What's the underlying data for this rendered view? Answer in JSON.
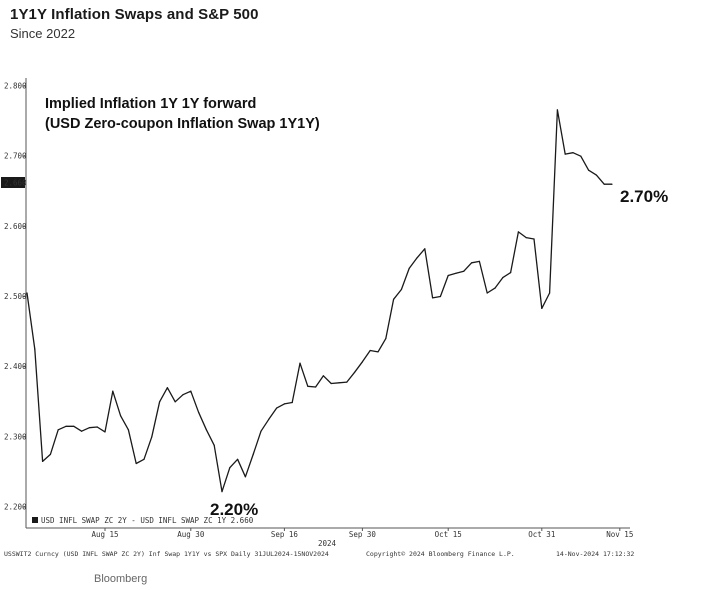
{
  "header": {
    "title": "1Y1Y Inflation Swaps and S&P 500",
    "subtitle": "Since 2022"
  },
  "footer": {
    "left": "USSWIT2 Curncy (USD INFL SWAP ZC 2Y) Inf Swap 1Y1Y vs SPX  Daily 31JUL2024-15NOV2024",
    "center": "Copyright© 2024 Bloomberg Finance L.P.",
    "right": "14-Nov-2024 17:12:32",
    "brand": "Bloomberg"
  },
  "chart_data": {
    "type": "line",
    "annotation_lines": [
      "Implied Inflation 1Y 1Y forward",
      "(USD Zero-coupon Inflation Swap 1Y1Y)"
    ],
    "low_label": "2.20%",
    "last_label": "2.70%",
    "legend": "USD INFL SWAP ZC 2Y - USD INFL SWAP ZC 1Y 2.660",
    "last_value_tag": "2.660",
    "xlabel": "2024",
    "x_ticks": [
      "Aug 15",
      "Aug 30",
      "Sep 16",
      "Sep 30",
      "Oct 15",
      "Oct 31",
      "Nov 15"
    ],
    "y_ticks": [
      "2.200",
      "2.300",
      "2.400",
      "2.500",
      "2.600",
      "2.700",
      "2.800"
    ],
    "ylim": [
      2.18,
      2.82
    ],
    "colors": {
      "line": "#1a1a1a",
      "axis": "#555555",
      "tag_bg": "#1a1a1a",
      "tag_text": "#ffffff"
    },
    "series": [
      {
        "values": [
          2.505,
          2.425,
          2.265,
          2.275,
          2.31,
          2.315,
          2.315,
          2.308,
          2.313,
          2.314,
          2.307,
          2.365,
          2.33,
          2.31,
          2.262,
          2.268,
          2.3,
          2.35,
          2.37,
          2.35,
          2.36,
          2.365,
          2.335,
          2.31,
          2.288,
          2.222,
          2.256,
          2.268,
          2.243,
          2.275,
          2.308,
          2.325,
          2.341,
          2.347,
          2.349,
          2.405,
          2.372,
          2.371,
          2.387,
          2.376,
          2.377,
          2.378,
          2.392,
          2.407,
          2.423,
          2.421,
          2.44,
          2.496,
          2.51,
          2.54,
          2.555,
          2.568,
          2.498,
          2.5,
          2.53,
          2.533,
          2.536,
          2.548,
          2.55,
          2.505,
          2.512,
          2.527,
          2.534,
          2.592,
          2.584,
          2.582,
          2.483,
          2.505,
          2.766,
          2.703,
          2.705,
          2.7,
          2.68,
          2.673,
          2.66,
          2.66
        ]
      }
    ]
  }
}
